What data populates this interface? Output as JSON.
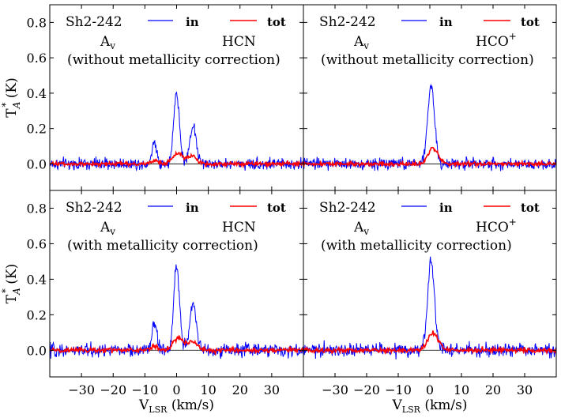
{
  "chart_data": {
    "type": "line",
    "x_axis_label": "V",
    "x_axis_label_sub": "LSR",
    "x_axis_label_unit": " (km/s)",
    "y_axis_label": "T",
    "y_axis_label_sup": "*",
    "y_axis_label_sub": "A",
    "y_axis_label_unit": " (K)",
    "xlim": [
      -40,
      40
    ],
    "ylim": [
      -0.15,
      0.9
    ],
    "x_ticks": [
      -30,
      -20,
      -10,
      0,
      10,
      20,
      30
    ],
    "x_tick_labels": [
      "−30",
      "−20",
      "−10",
      "0",
      "10",
      "20",
      "30"
    ],
    "y_ticks": [
      0.0,
      0.2,
      0.4,
      0.6,
      0.8
    ],
    "y_tick_labels": [
      "0.0",
      "0.2",
      "0.4",
      "0.6",
      "0.8"
    ],
    "legend": {
      "in": "in",
      "tot": "tot"
    },
    "series_colors": {
      "in": "#0000ff",
      "tot": "#ff0000",
      "baseline": "#000000"
    },
    "panels": [
      {
        "source": "Sh2-242",
        "extinction": "A",
        "extinction_sub": "v",
        "molecule": "HCN",
        "molecule_sup": "",
        "note": "(without metallicity correction)",
        "noise_in": 0.035,
        "noise_tot": 0.012,
        "in_components": [
          [
            -7.0,
            0.12,
            0.8
          ],
          [
            0.0,
            0.4,
            0.9
          ],
          [
            5.2,
            0.22,
            1.0
          ]
        ],
        "tot_components": [
          [
            -7.0,
            0.02,
            1.2
          ],
          [
            0.5,
            0.06,
            1.6
          ],
          [
            5.0,
            0.04,
            1.5
          ]
        ]
      },
      {
        "source": "Sh2-242",
        "extinction": "A",
        "extinction_sub": "v",
        "molecule": "HCO",
        "molecule_sup": "+",
        "note": "(without metallicity correction)",
        "noise_in": 0.035,
        "noise_tot": 0.012,
        "in_components": [
          [
            0.4,
            0.44,
            1.1
          ]
        ],
        "tot_components": [
          [
            1.0,
            0.09,
            1.6
          ]
        ]
      },
      {
        "source": "Sh2-242",
        "extinction": "A",
        "extinction_sub": "v",
        "molecule": "HCN",
        "molecule_sup": "",
        "note": "(with metallicity correction)",
        "noise_in": 0.04,
        "noise_tot": 0.014,
        "in_components": [
          [
            -7.0,
            0.15,
            0.8
          ],
          [
            0.0,
            0.48,
            0.9
          ],
          [
            5.2,
            0.27,
            1.0
          ]
        ],
        "tot_components": [
          [
            -7.0,
            0.02,
            1.2
          ],
          [
            0.5,
            0.07,
            1.6
          ],
          [
            5.0,
            0.05,
            1.5
          ]
        ]
      },
      {
        "source": "Sh2-242",
        "extinction": "A",
        "extinction_sub": "v",
        "molecule": "HCO",
        "molecule_sup": "+",
        "note": "(with metallicity correction)",
        "noise_in": 0.04,
        "noise_tot": 0.014,
        "in_components": [
          [
            0.4,
            0.5,
            1.1
          ]
        ],
        "tot_components": [
          [
            1.0,
            0.1,
            1.6
          ]
        ]
      }
    ]
  }
}
